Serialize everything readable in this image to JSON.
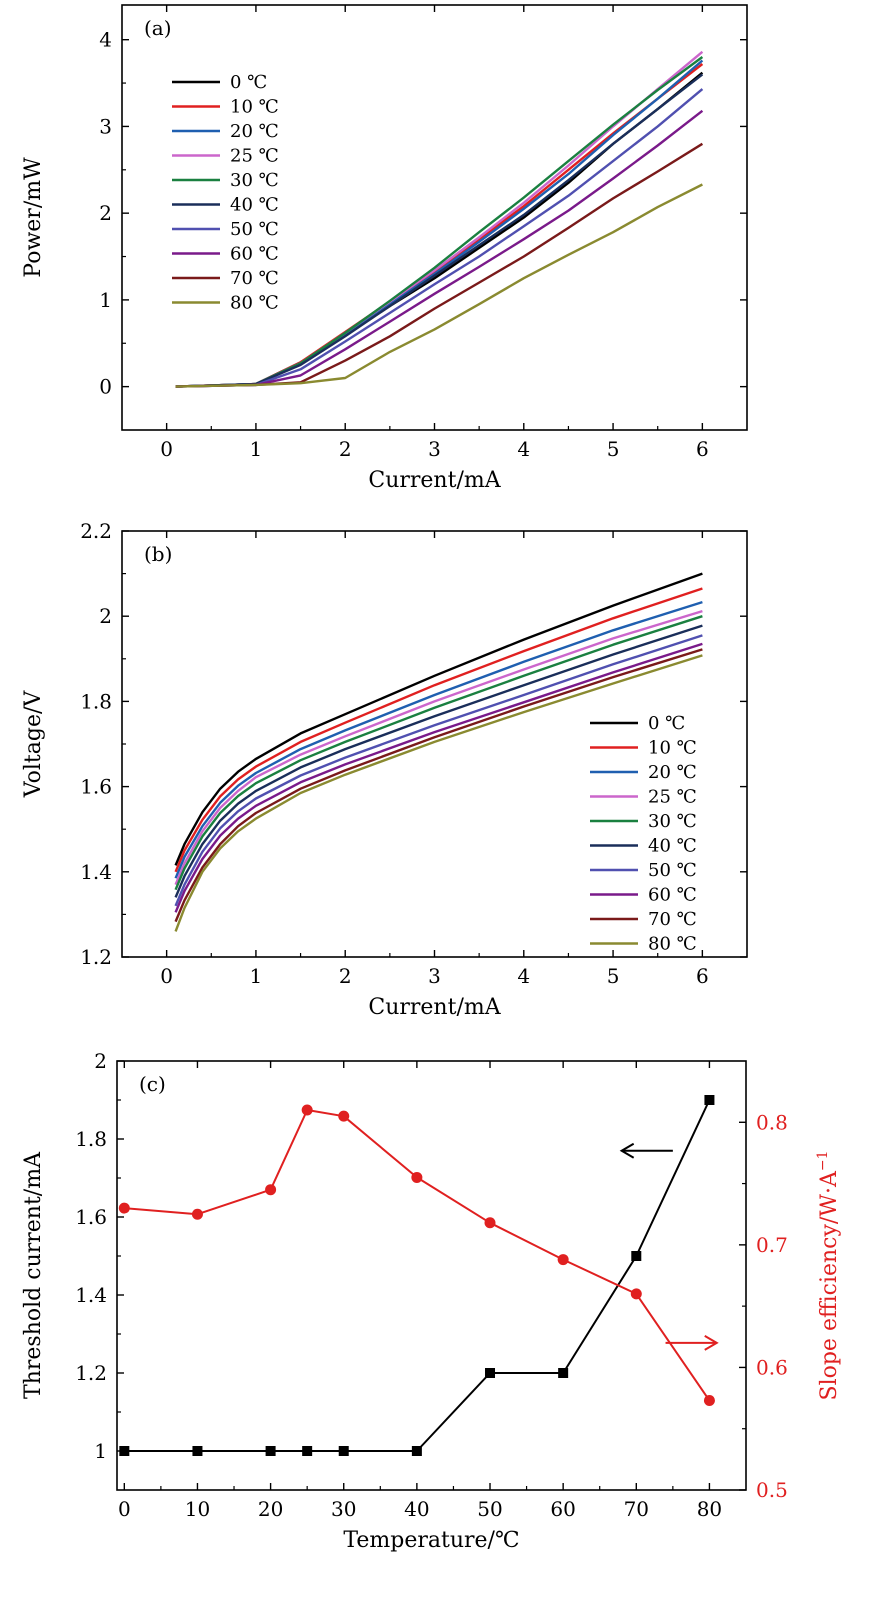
{
  "chart_data": [
    {
      "type": "line",
      "panel_label": "(a)",
      "xlabel": "Current/mA",
      "ylabel": "Power/mW",
      "xlim": [
        -0.5,
        6.5
      ],
      "ylim": [
        -0.5,
        4.4
      ],
      "xticks": [
        0,
        1,
        2,
        3,
        4,
        5,
        6
      ],
      "yticks": [
        0,
        1,
        2,
        3,
        4
      ],
      "legend_position": "upper-left",
      "x": [
        0.1,
        1.0,
        1.5,
        2.0,
        2.5,
        3.0,
        3.5,
        4.0,
        4.5,
        5.0,
        5.5,
        6.0
      ],
      "series": [
        {
          "name": "0 ℃",
          "color": "#000000",
          "values": [
            0,
            0.03,
            0.28,
            0.6,
            0.93,
            1.25,
            1.6,
            1.95,
            2.35,
            2.8,
            3.2,
            3.62
          ]
        },
        {
          "name": "10 ℃",
          "color": "#e02020",
          "values": [
            0,
            0.03,
            0.28,
            0.63,
            0.98,
            1.32,
            1.7,
            2.08,
            2.5,
            2.92,
            3.32,
            3.72
          ]
        },
        {
          "name": "20 ℃",
          "color": "#1f5fb0",
          "values": [
            0,
            0.03,
            0.27,
            0.6,
            0.95,
            1.3,
            1.67,
            2.05,
            2.45,
            2.9,
            3.32,
            3.76
          ]
        },
        {
          "name": "25 ℃",
          "color": "#cc66cc",
          "values": [
            0,
            0.03,
            0.27,
            0.62,
            0.98,
            1.34,
            1.72,
            2.12,
            2.55,
            3.0,
            3.43,
            3.86
          ]
        },
        {
          "name": "30 ℃",
          "color": "#1a8040",
          "values": [
            0,
            0.03,
            0.27,
            0.62,
            0.99,
            1.37,
            1.78,
            2.18,
            2.6,
            3.02,
            3.42,
            3.8
          ]
        },
        {
          "name": "40 ℃",
          "color": "#1a2e5a",
          "values": [
            0,
            0.03,
            0.25,
            0.58,
            0.93,
            1.28,
            1.63,
            1.98,
            2.38,
            2.8,
            3.2,
            3.6
          ]
        },
        {
          "name": "50 ℃",
          "color": "#5050b0",
          "values": [
            0,
            0.02,
            0.2,
            0.52,
            0.85,
            1.18,
            1.5,
            1.85,
            2.2,
            2.6,
            3.0,
            3.43
          ]
        },
        {
          "name": "60 ℃",
          "color": "#7a1a8a",
          "values": [
            0,
            0.02,
            0.13,
            0.43,
            0.75,
            1.07,
            1.38,
            1.7,
            2.03,
            2.4,
            2.78,
            3.18
          ]
        },
        {
          "name": "70 ℃",
          "color": "#7a1a1a",
          "values": [
            0,
            0.02,
            0.05,
            0.3,
            0.58,
            0.9,
            1.2,
            1.5,
            1.83,
            2.17,
            2.48,
            2.8
          ]
        },
        {
          "name": "80 ℃",
          "color": "#8a8a30",
          "values": [
            0,
            0.02,
            0.04,
            0.1,
            0.4,
            0.66,
            0.95,
            1.25,
            1.52,
            1.78,
            2.07,
            2.33
          ]
        }
      ]
    },
    {
      "type": "line",
      "panel_label": "(b)",
      "xlabel": "Current/mA",
      "ylabel": "Voltage/V",
      "xlim": [
        -0.5,
        6.5
      ],
      "ylim": [
        1.2,
        2.2
      ],
      "xticks": [
        0,
        1,
        2,
        3,
        4,
        5,
        6
      ],
      "yticks": [
        1.2,
        1.4,
        1.6,
        1.8,
        2.0,
        2.2
      ],
      "ytick_labels": [
        "1.2",
        "1.4",
        "1.6",
        "1.8",
        "2.0",
        "2.2"
      ],
      "legend_position": "lower-right",
      "x": [
        0.1,
        0.2,
        0.4,
        0.6,
        0.8,
        1.0,
        1.5,
        2.0,
        3.0,
        4.0,
        5.0,
        6.0
      ],
      "series": [
        {
          "name": "0 ℃",
          "color": "#000000",
          "values": [
            1.415,
            1.465,
            1.54,
            1.595,
            1.635,
            1.665,
            1.725,
            1.77,
            1.86,
            1.945,
            2.025,
            2.1
          ]
        },
        {
          "name": "10 ℃",
          "color": "#e02020",
          "values": [
            1.4,
            1.45,
            1.522,
            1.577,
            1.617,
            1.647,
            1.705,
            1.75,
            1.838,
            1.918,
            1.995,
            2.065
          ]
        },
        {
          "name": "20 ℃",
          "color": "#1f5fb0",
          "values": [
            1.385,
            1.435,
            1.507,
            1.562,
            1.602,
            1.632,
            1.688,
            1.732,
            1.815,
            1.893,
            1.967,
            2.033
          ]
        },
        {
          "name": "25 ℃",
          "color": "#cc66cc",
          "values": [
            1.37,
            1.42,
            1.495,
            1.55,
            1.59,
            1.622,
            1.675,
            1.718,
            1.8,
            1.875,
            1.948,
            2.012
          ]
        },
        {
          "name": "30 ℃",
          "color": "#1a8040",
          "values": [
            1.358,
            1.408,
            1.483,
            1.538,
            1.578,
            1.608,
            1.662,
            1.705,
            1.785,
            1.86,
            1.933,
            2.0
          ]
        },
        {
          "name": "40 ℃",
          "color": "#1a2e5a",
          "values": [
            1.34,
            1.39,
            1.465,
            1.52,
            1.56,
            1.59,
            1.645,
            1.688,
            1.765,
            1.838,
            1.91,
            1.978
          ]
        },
        {
          "name": "50 ℃",
          "color": "#5050b0",
          "values": [
            1.32,
            1.37,
            1.447,
            1.502,
            1.542,
            1.572,
            1.626,
            1.668,
            1.744,
            1.815,
            1.887,
            1.955
          ]
        },
        {
          "name": "60 ℃",
          "color": "#7a1a8a",
          "values": [
            1.305,
            1.355,
            1.43,
            1.485,
            1.525,
            1.555,
            1.61,
            1.652,
            1.728,
            1.798,
            1.868,
            1.935
          ]
        },
        {
          "name": "70 ℃",
          "color": "#7a1a1a",
          "values": [
            1.283,
            1.333,
            1.41,
            1.465,
            1.507,
            1.538,
            1.595,
            1.638,
            1.716,
            1.788,
            1.857,
            1.922
          ]
        },
        {
          "name": "80 ℃",
          "color": "#8a8a30",
          "values": [
            1.26,
            1.315,
            1.4,
            1.455,
            1.495,
            1.525,
            1.585,
            1.628,
            1.705,
            1.775,
            1.842,
            1.908
          ]
        }
      ]
    },
    {
      "type": "line",
      "panel_label": "(c)",
      "xlabel": "Temperature/℃",
      "ylabel": "Threshold current/mA",
      "y2label": "Slope efficiency/W·A",
      "y2label_superscript": "−1",
      "xlim": [
        -1,
        85
      ],
      "ylim": [
        0.9,
        2.0
      ],
      "y2lim": [
        0.5,
        0.85
      ],
      "xticks": [
        0,
        10,
        20,
        30,
        40,
        50,
        60,
        70,
        80
      ],
      "yticks": [
        1.0,
        1.2,
        1.4,
        1.6,
        1.8,
        2.0
      ],
      "ytick_labels": [
        "1.0",
        "1.2",
        "1.4",
        "1.6",
        "1.8",
        "2.0"
      ],
      "y2ticks": [
        0.5,
        0.6,
        0.7,
        0.8
      ],
      "y2tick_labels": [
        "0.5",
        "0.6",
        "0.7",
        "0.8"
      ],
      "y2_color": "#e02020",
      "x": [
        0,
        10,
        20,
        25,
        30,
        40,
        50,
        60,
        70,
        80
      ],
      "series": [
        {
          "axis": "left",
          "color": "#000000",
          "marker": "square",
          "values": [
            1.0,
            1.0,
            1.0,
            1.0,
            1.0,
            1.0,
            1.2,
            1.2,
            1.5,
            1.9
          ]
        },
        {
          "axis": "right",
          "color": "#e02020",
          "marker": "circle",
          "values": [
            0.73,
            0.725,
            0.745,
            0.81,
            0.805,
            0.755,
            0.718,
            0.688,
            0.66,
            0.573
          ]
        }
      ],
      "annotations": [
        {
          "type": "arrow",
          "direction": "left",
          "color": "#000000",
          "x_from": 75,
          "x_to": 68,
          "y": 1.77,
          "axis": "left"
        },
        {
          "type": "arrow",
          "direction": "right",
          "color": "#e02020",
          "x_from": 74,
          "x_to": 81,
          "y": 0.62,
          "axis": "right"
        }
      ]
    }
  ]
}
